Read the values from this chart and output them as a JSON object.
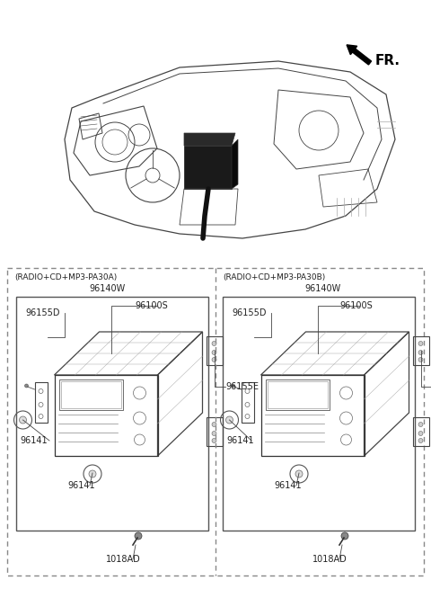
{
  "background_color": "#ffffff",
  "fr_label": "FR.",
  "left_box_label": "(RADIO+CD+MP3-PA30A)",
  "right_box_label": "(RADIO+CD+MP3-PA30B)",
  "left_part_label": "96140W",
  "right_part_label": "96140W",
  "text_color": "#222222",
  "line_color": "#444444",
  "gray_color": "#888888",
  "dash_color": "#aaaaaa",
  "figsize": [
    4.8,
    6.55
  ],
  "dpi": 100
}
